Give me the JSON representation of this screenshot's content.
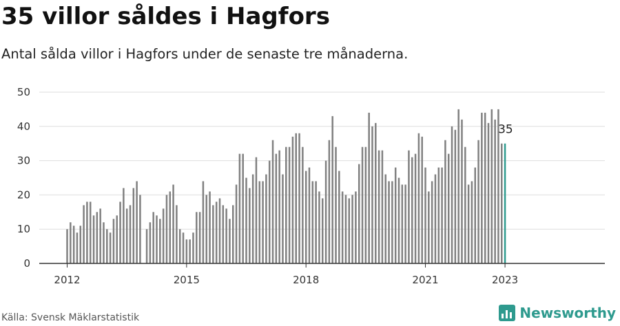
{
  "header": {
    "title": "35 villor såldes i Hagfors",
    "subtitle": "Antal sålda villor i Hagfors under de senaste tre månaderna."
  },
  "footer": {
    "source": "Källa: Svensk Mäklarstatistik",
    "brand": "Newsworthy"
  },
  "colors": {
    "bar": "#808080",
    "highlight": "#2e9a8e",
    "grid": "#dddddd",
    "axis": "#333333"
  },
  "chart_data": {
    "type": "bar",
    "title": "35 villor såldes i Hagfors",
    "subtitle": "Antal sålda villor i Hagfors under de senaste tre månaderna.",
    "xlabel": "",
    "ylabel": "",
    "ylim": [
      0,
      50
    ],
    "yticks": [
      0,
      10,
      20,
      30,
      40,
      50
    ],
    "xticks": [
      "2012",
      "2015",
      "2018",
      "2021",
      "2023"
    ],
    "grid": true,
    "start_month": "2012-01",
    "values": [
      10,
      12,
      11,
      9,
      11,
      17,
      18,
      18,
      14,
      15,
      16,
      12,
      10,
      9,
      13,
      14,
      18,
      22,
      16,
      17,
      22,
      24,
      20,
      null,
      10,
      12,
      15,
      14,
      13,
      16,
      20,
      21,
      23,
      17,
      10,
      9,
      7,
      7,
      9,
      15,
      15,
      24,
      20,
      21,
      17,
      18,
      19,
      17,
      16,
      13,
      17,
      23,
      32,
      32,
      25,
      22,
      26,
      31,
      24,
      24,
      26,
      30,
      36,
      32,
      33,
      26,
      34,
      34,
      37,
      38,
      38,
      34,
      27,
      28,
      24,
      24,
      21,
      19,
      30,
      36,
      43,
      34,
      27,
      21,
      20,
      19,
      20,
      21,
      29,
      34,
      34,
      44,
      40,
      41,
      33,
      33,
      26,
      24,
      24,
      28,
      25,
      23,
      23,
      33,
      31,
      32,
      38,
      37,
      28,
      21,
      24,
      26,
      28,
      28,
      36,
      32,
      40,
      39,
      45,
      42,
      34,
      23,
      24,
      28,
      36,
      44,
      44,
      41,
      45,
      42,
      45,
      35,
      35
    ],
    "highlight": {
      "label": "35",
      "value": 35,
      "note": "last bar"
    }
  }
}
